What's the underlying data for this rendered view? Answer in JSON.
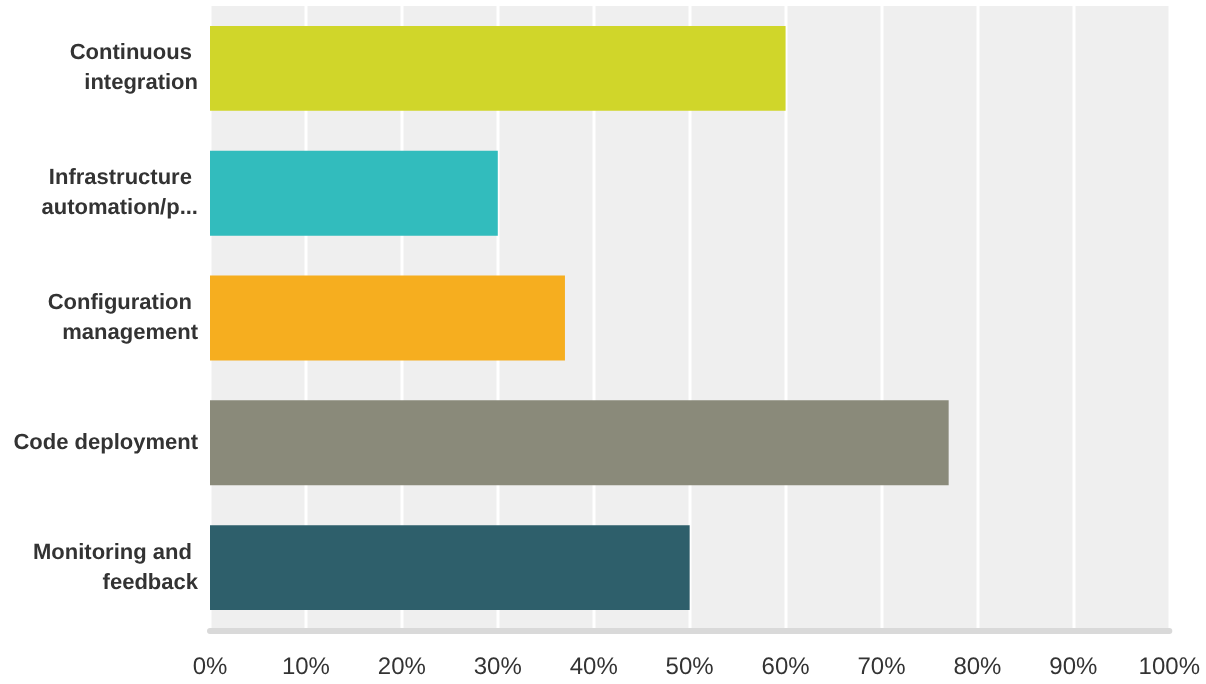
{
  "chart_data": {
    "type": "bar",
    "orientation": "horizontal",
    "categories": [
      "Continuous integration",
      "Infrastructure automation/p...",
      "Configuration management",
      "Code deployment",
      "Monitoring and feedback"
    ],
    "values": [
      60,
      30,
      37,
      77,
      50
    ],
    "colors": [
      "#d0d62a",
      "#32bcbd",
      "#f6ae1f",
      "#8a8a7a",
      "#2e5f6b"
    ],
    "xlim": [
      0,
      100
    ],
    "xticks": [
      {
        "value": 0,
        "label": "0%"
      },
      {
        "value": 10,
        "label": "10%"
      },
      {
        "value": 20,
        "label": "20%"
      },
      {
        "value": 30,
        "label": "30%"
      },
      {
        "value": 40,
        "label": "40%"
      },
      {
        "value": 50,
        "label": "50%"
      },
      {
        "value": 60,
        "label": "60%"
      },
      {
        "value": 70,
        "label": "70%"
      },
      {
        "value": 80,
        "label": "80%"
      },
      {
        "value": 90,
        "label": "90%"
      },
      {
        "value": 100,
        "label": "100%"
      }
    ],
    "grid": "x"
  }
}
